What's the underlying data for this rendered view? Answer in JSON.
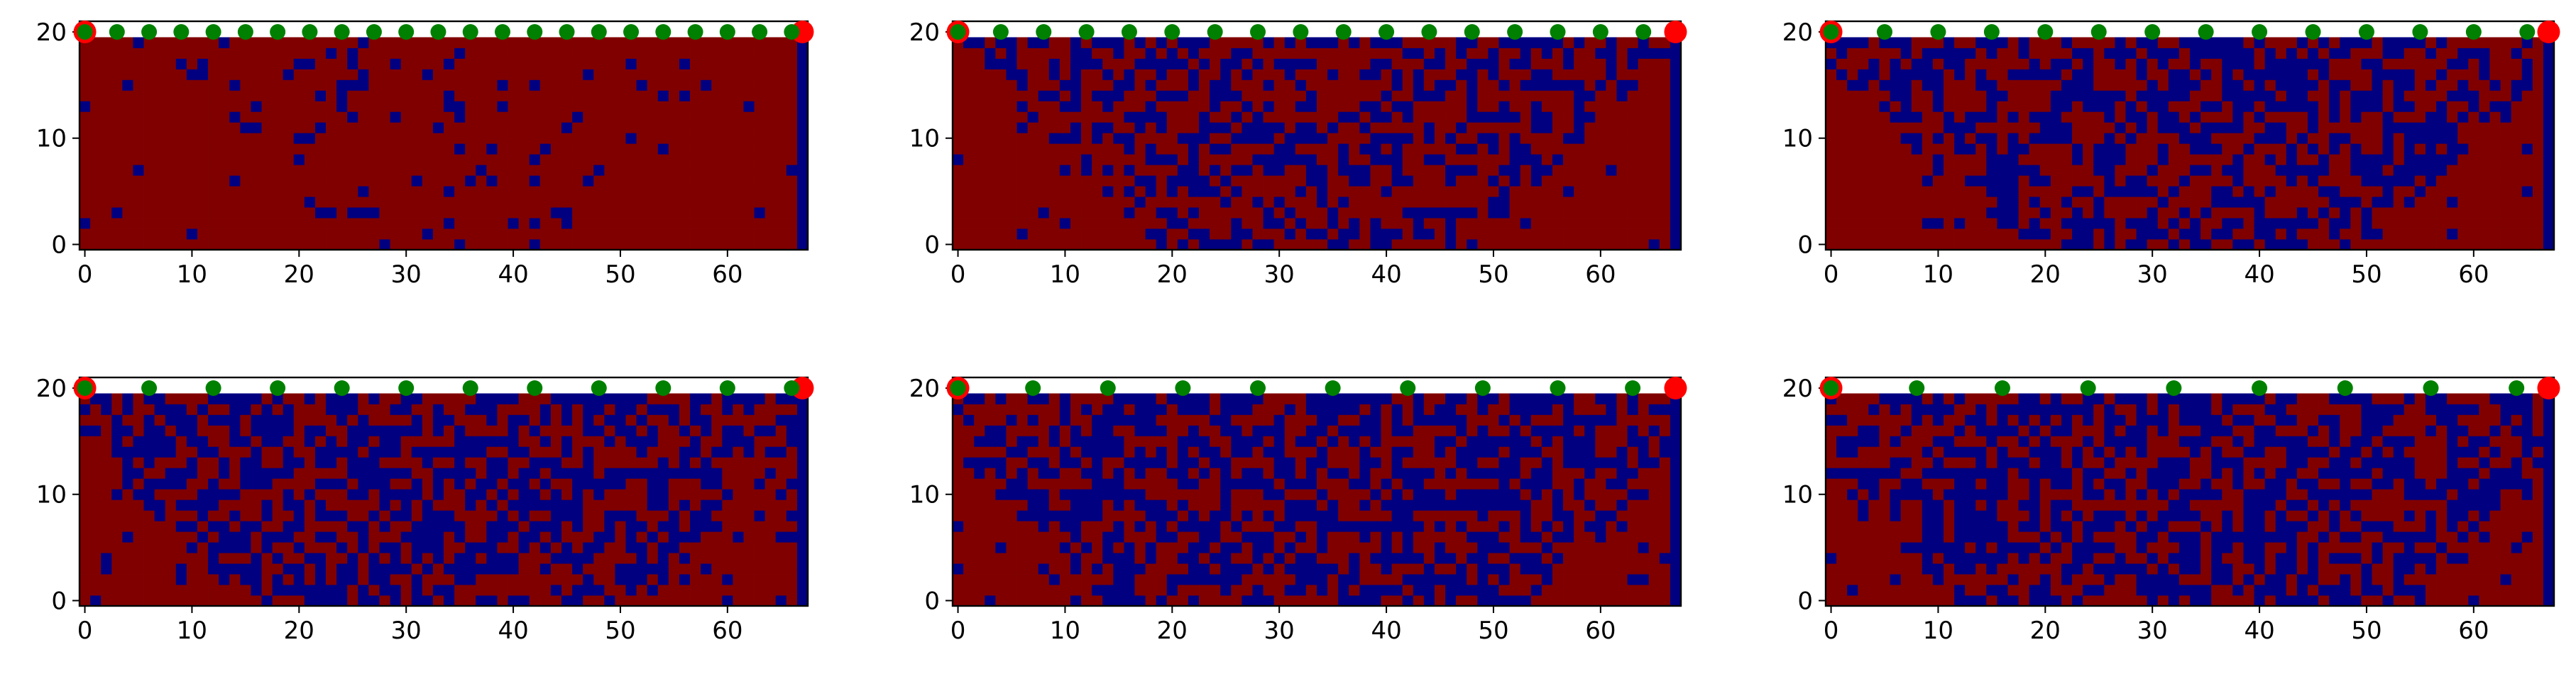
{
  "figure": {
    "grid_layout": "2x3",
    "colors": {
      "background": "#ffffff",
      "cell_high": "#800000",
      "cell_low": "#000080",
      "green_marker": "#008000",
      "red_marker": "#ff0000",
      "frame": "#000000"
    }
  },
  "chart_data": [
    {
      "type": "heatmap",
      "panel": "top-left",
      "rows": 20,
      "cols": 68,
      "xlim": [
        -0.5,
        67.5
      ],
      "ylim": [
        -0.5,
        21
      ],
      "xticks": [
        0,
        10,
        20,
        30,
        40,
        50,
        60
      ],
      "yticks": [
        0,
        10,
        20
      ],
      "grid": false,
      "legend": "none",
      "density": 0.1,
      "spread": 0.3,
      "green_points_x": [
        0,
        3,
        6,
        9,
        12,
        15,
        18,
        21,
        24,
        27,
        30,
        33,
        36,
        39,
        42,
        45,
        48,
        51,
        54,
        57,
        60,
        63,
        66
      ],
      "red_points_x": [
        0,
        67
      ],
      "markers_y": 20
    },
    {
      "type": "heatmap",
      "panel": "top-center",
      "rows": 20,
      "cols": 68,
      "xlim": [
        -0.5,
        67.5
      ],
      "ylim": [
        -0.5,
        21
      ],
      "xticks": [
        0,
        10,
        20,
        30,
        40,
        50,
        60
      ],
      "yticks": [
        0,
        10,
        20
      ],
      "grid": false,
      "legend": "none",
      "density": 0.4,
      "spread": 0.45,
      "green_points_x": [
        0,
        4,
        8,
        12,
        16,
        20,
        24,
        28,
        32,
        36,
        40,
        44,
        48,
        52,
        56,
        60,
        64
      ],
      "red_points_x": [
        0,
        67
      ],
      "markers_y": 20
    },
    {
      "type": "heatmap",
      "panel": "top-right",
      "rows": 20,
      "cols": 68,
      "xlim": [
        -0.5,
        67.5
      ],
      "ylim": [
        -0.5,
        21
      ],
      "xticks": [
        0,
        10,
        20,
        30,
        40,
        50,
        60
      ],
      "yticks": [
        0,
        10,
        20
      ],
      "grid": false,
      "legend": "none",
      "density": 0.45,
      "spread": 0.5,
      "green_points_x": [
        0,
        5,
        10,
        15,
        20,
        25,
        30,
        35,
        40,
        45,
        50,
        55,
        60,
        65
      ],
      "red_points_x": [
        0,
        67
      ],
      "markers_y": 20
    },
    {
      "type": "heatmap",
      "panel": "bottom-left",
      "rows": 20,
      "cols": 68,
      "xlim": [
        -0.5,
        67.5
      ],
      "ylim": [
        -0.5,
        21
      ],
      "xticks": [
        0,
        10,
        20,
        30,
        40,
        50,
        60
      ],
      "yticks": [
        0,
        10,
        20
      ],
      "grid": false,
      "legend": "none",
      "density": 0.5,
      "spread": 0.55,
      "green_points_x": [
        0,
        6,
        12,
        18,
        24,
        30,
        36,
        42,
        48,
        54,
        60,
        66
      ],
      "red_points_x": [
        0,
        67
      ],
      "markers_y": 20
    },
    {
      "type": "heatmap",
      "panel": "bottom-center",
      "rows": 20,
      "cols": 68,
      "xlim": [
        -0.5,
        67.5
      ],
      "ylim": [
        -0.5,
        21
      ],
      "xticks": [
        0,
        10,
        20,
        30,
        40,
        50,
        60
      ],
      "yticks": [
        0,
        10,
        20
      ],
      "grid": false,
      "legend": "none",
      "density": 0.5,
      "spread": 0.6,
      "green_points_x": [
        0,
        7,
        14,
        21,
        28,
        35,
        42,
        49,
        56,
        63
      ],
      "red_points_x": [
        0,
        67
      ],
      "markers_y": 20
    },
    {
      "type": "heatmap",
      "panel": "bottom-right",
      "rows": 20,
      "cols": 68,
      "xlim": [
        -0.5,
        67.5
      ],
      "ylim": [
        -0.5,
        21
      ],
      "xticks": [
        0,
        10,
        20,
        30,
        40,
        50,
        60
      ],
      "yticks": [
        0,
        10,
        20
      ],
      "grid": false,
      "legend": "none",
      "density": 0.5,
      "spread": 0.65,
      "green_points_x": [
        0,
        8,
        16,
        24,
        32,
        40,
        48,
        56,
        64
      ],
      "red_points_x": [
        0,
        67
      ],
      "markers_y": 20
    }
  ]
}
